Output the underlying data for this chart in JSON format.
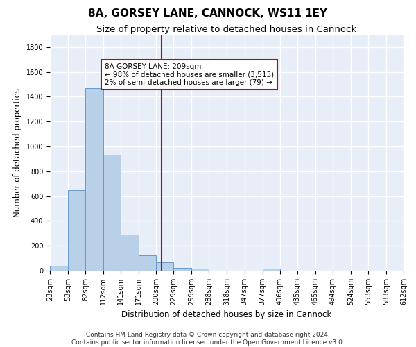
{
  "title": "8A, GORSEY LANE, CANNOCK, WS11 1EY",
  "subtitle": "Size of property relative to detached houses in Cannock",
  "xlabel": "Distribution of detached houses by size in Cannock",
  "ylabel": "Number of detached properties",
  "bar_color": "#b8d0e8",
  "bar_edge_color": "#6699cc",
  "bg_color": "#e8eef8",
  "grid_color": "#ffffff",
  "vline_x": 209,
  "vline_color": "#cc0000",
  "annotation_line1": "8A GORSEY LANE: 209sqm",
  "annotation_line2": "← 98% of detached houses are smaller (3,513)",
  "annotation_line3": "2% of semi-detached houses are larger (79) →",
  "annotation_box_color": "#cc0000",
  "bin_edges": [
    23,
    53,
    82,
    112,
    141,
    171,
    200,
    229,
    259,
    288,
    318,
    347,
    377,
    406,
    435,
    465,
    494,
    524,
    553,
    583,
    612
  ],
  "bin_labels": [
    "23sqm",
    "53sqm",
    "82sqm",
    "112sqm",
    "141sqm",
    "171sqm",
    "200sqm",
    "229sqm",
    "259sqm",
    "288sqm",
    "318sqm",
    "347sqm",
    "377sqm",
    "406sqm",
    "435sqm",
    "465sqm",
    "494sqm",
    "524sqm",
    "553sqm",
    "583sqm",
    "612sqm"
  ],
  "bar_heights": [
    40,
    650,
    1470,
    935,
    290,
    125,
    65,
    25,
    15,
    0,
    0,
    0,
    15,
    0,
    0,
    0,
    0,
    0,
    0,
    0
  ],
  "ylim": [
    0,
    1900
  ],
  "yticks": [
    0,
    200,
    400,
    600,
    800,
    1000,
    1200,
    1400,
    1600,
    1800
  ],
  "footer_text": "Contains HM Land Registry data © Crown copyright and database right 2024.\nContains public sector information licensed under the Open Government Licence v3.0.",
  "title_fontsize": 11,
  "subtitle_fontsize": 9.5,
  "axis_label_fontsize": 8.5,
  "tick_fontsize": 7,
  "annotation_fontsize": 7.5,
  "footer_fontsize": 6.5
}
